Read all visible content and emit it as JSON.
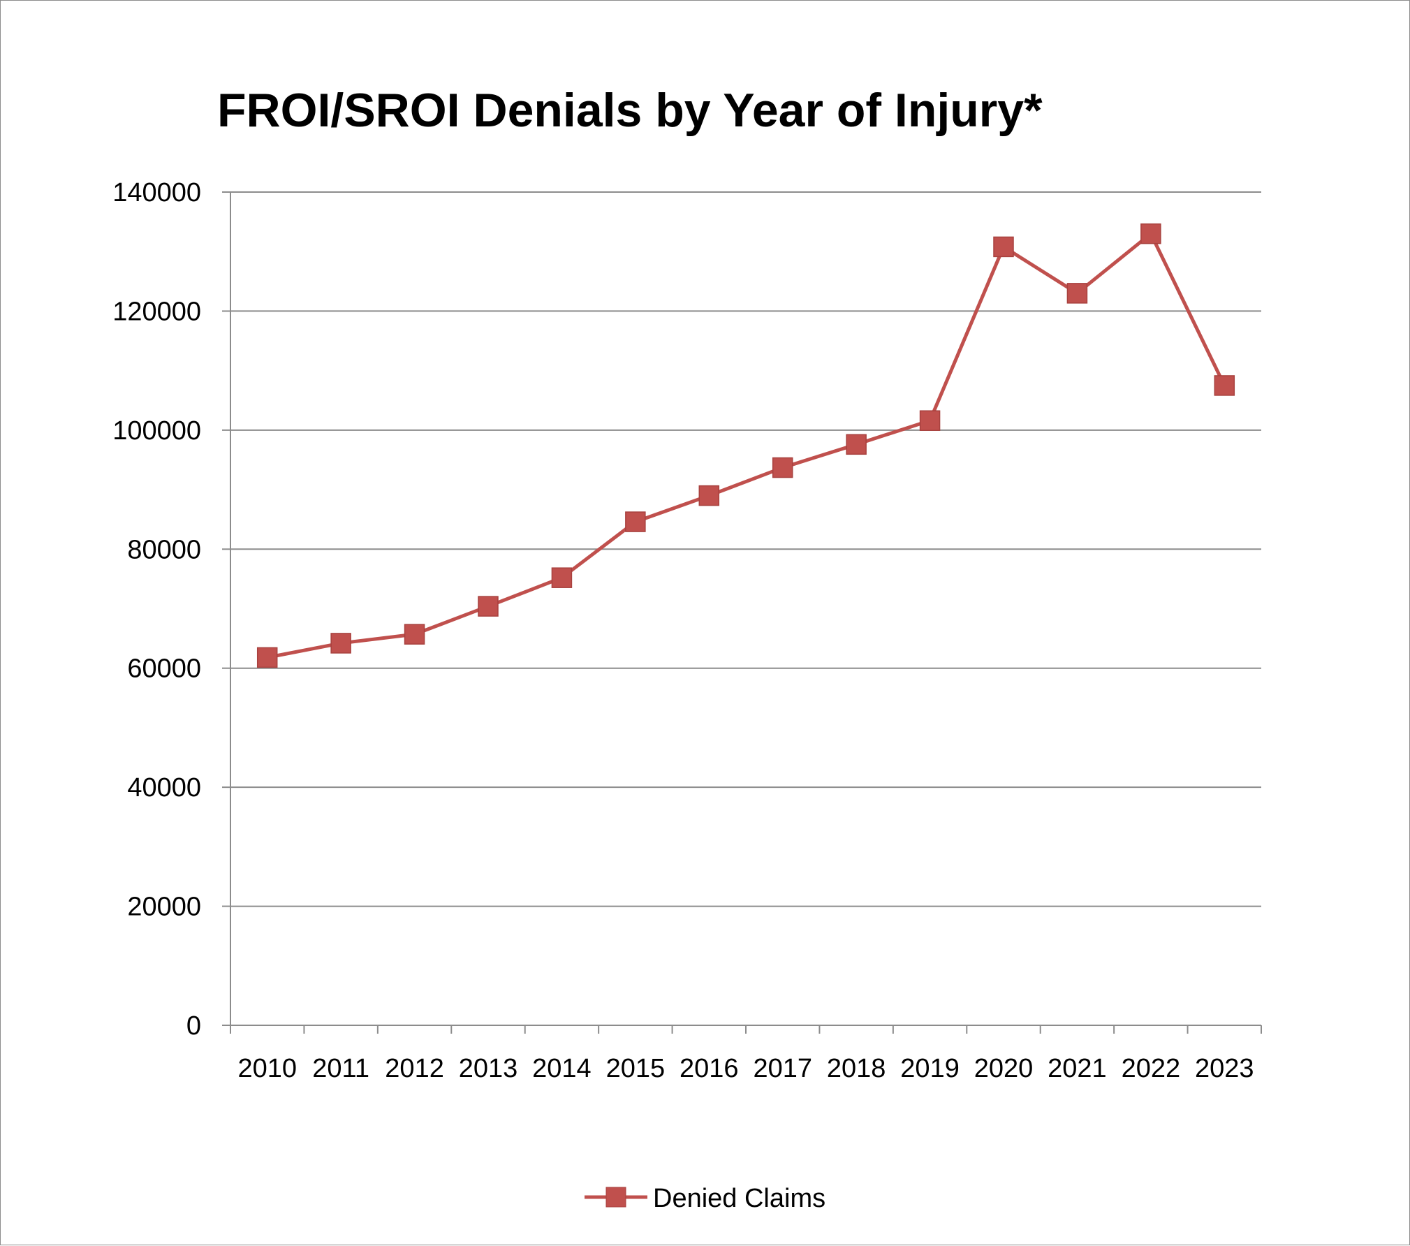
{
  "chart_data": {
    "type": "line",
    "title": "FROI/SROI Denials by Year of Injury*",
    "xlabel": "",
    "ylabel": "",
    "categories": [
      "2010",
      "2011",
      "2012",
      "2013",
      "2014",
      "2015",
      "2016",
      "2017",
      "2018",
      "2019",
      "2020",
      "2021",
      "2022",
      "2023"
    ],
    "series": [
      {
        "name": "Denied Claims",
        "values": [
          61800,
          64200,
          65700,
          70400,
          75200,
          84600,
          89000,
          93700,
          97600,
          101600,
          130800,
          123000,
          133000,
          107500
        ],
        "color": "#c0504d",
        "marker": "square"
      }
    ],
    "ylim": [
      0,
      140000
    ],
    "yticks": [
      "0",
      "20000",
      "40000",
      "60000",
      "80000",
      "100000",
      "120000",
      "140000"
    ],
    "grid": true,
    "legend_position": "bottom"
  }
}
